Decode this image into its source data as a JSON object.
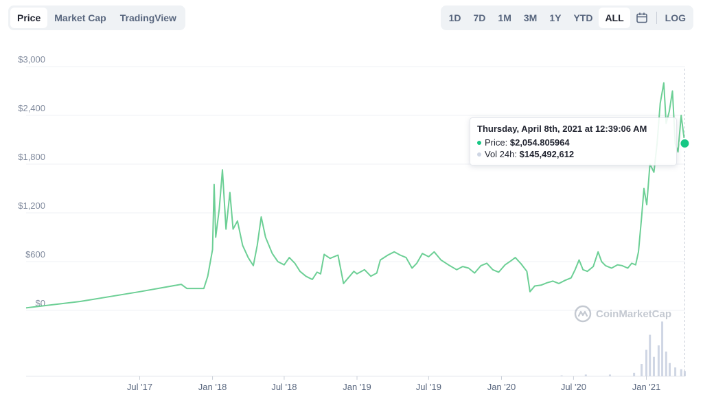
{
  "view_tabs": [
    {
      "label": "Price",
      "active": true
    },
    {
      "label": "Market Cap",
      "active": false
    },
    {
      "label": "TradingView",
      "active": false
    }
  ],
  "ranges": [
    {
      "label": "1D",
      "active": false
    },
    {
      "label": "7D",
      "active": false
    },
    {
      "label": "1M",
      "active": false
    },
    {
      "label": "3M",
      "active": false
    },
    {
      "label": "1Y",
      "active": false
    },
    {
      "label": "YTD",
      "active": false
    },
    {
      "label": "ALL",
      "active": true
    }
  ],
  "log_label": "LOG",
  "icons": {
    "calendar": "calendar-icon",
    "watermark": "coinmarketcap-logo-icon"
  },
  "tooltip": {
    "date": "Thursday, April 8th, 2021 at 12:39:06 AM",
    "price_label": "Price:",
    "price_value": "$2,054.805964",
    "vol_label": "Vol 24h:",
    "vol_value": "$145,492,612"
  },
  "watermark": "CoinMarketCap",
  "colors": {
    "line": "#16c784",
    "line_fill": "#6ccf95",
    "grid": "#eff2f5",
    "volume": "#cfd6e4",
    "axis_text": "#808a9d"
  },
  "chart_data": {
    "type": "line",
    "title": "",
    "ylabel": "",
    "xlabel": "",
    "y_ticks": [
      0,
      600,
      1200,
      1800,
      2400,
      3000
    ],
    "y_tick_labels": [
      "$0",
      "$600",
      "$1,200",
      "$1,800",
      "$2,400",
      "$3,000"
    ],
    "ylim": [
      0,
      3000
    ],
    "x_tick_labels": [
      "Jul '17",
      "Jan '18",
      "Jul '18",
      "Jan '19",
      "Jul '19",
      "Jan '20",
      "Jul '20",
      "Jan '21"
    ],
    "x_ticks": [
      "2017-07-01",
      "2018-01-01",
      "2018-07-01",
      "2019-01-01",
      "2019-07-01",
      "2020-01-01",
      "2020-07-01",
      "2021-01-01"
    ],
    "xlim": [
      "2016-09-17",
      "2021-04-09"
    ],
    "grid": true,
    "series": [
      {
        "values": [
          [
            "2016-09-17",
            30
          ],
          [
            "2017-02-01",
            110
          ],
          [
            "2017-07-01",
            230
          ],
          [
            "2017-10-14",
            320
          ],
          [
            "2017-10-28",
            270
          ],
          [
            "2017-12-10",
            270
          ],
          [
            "2017-12-20",
            420
          ],
          [
            "2018-01-01",
            750
          ],
          [
            "2018-01-05",
            1550
          ],
          [
            "2018-01-09",
            900
          ],
          [
            "2018-01-18",
            1250
          ],
          [
            "2018-01-26",
            1730
          ],
          [
            "2018-02-04",
            1000
          ],
          [
            "2018-02-14",
            1450
          ],
          [
            "2018-02-22",
            1000
          ],
          [
            "2018-03-05",
            1100
          ],
          [
            "2018-03-18",
            800
          ],
          [
            "2018-04-01",
            650
          ],
          [
            "2018-04-14",
            550
          ],
          [
            "2018-04-24",
            800
          ],
          [
            "2018-05-04",
            1150
          ],
          [
            "2018-05-15",
            900
          ],
          [
            "2018-06-01",
            700
          ],
          [
            "2018-06-15",
            600
          ],
          [
            "2018-07-01",
            560
          ],
          [
            "2018-07-14",
            650
          ],
          [
            "2018-07-28",
            580
          ],
          [
            "2018-08-10",
            480
          ],
          [
            "2018-08-25",
            420
          ],
          [
            "2018-09-10",
            380
          ],
          [
            "2018-09-22",
            470
          ],
          [
            "2018-10-01",
            450
          ],
          [
            "2018-10-10",
            690
          ],
          [
            "2018-10-25",
            640
          ],
          [
            "2018-11-14",
            680
          ],
          [
            "2018-11-28",
            330
          ],
          [
            "2018-12-10",
            400
          ],
          [
            "2018-12-24",
            480
          ],
          [
            "2019-01-01",
            450
          ],
          [
            "2019-01-20",
            500
          ],
          [
            "2019-02-05",
            420
          ],
          [
            "2019-02-20",
            460
          ],
          [
            "2019-03-01",
            620
          ],
          [
            "2019-03-20",
            680
          ],
          [
            "2019-04-05",
            720
          ],
          [
            "2019-04-20",
            680
          ],
          [
            "2019-05-05",
            650
          ],
          [
            "2019-05-20",
            520
          ],
          [
            "2019-06-01",
            580
          ],
          [
            "2019-06-15",
            700
          ],
          [
            "2019-07-01",
            660
          ],
          [
            "2019-07-15",
            720
          ],
          [
            "2019-08-01",
            620
          ],
          [
            "2019-08-20",
            560
          ],
          [
            "2019-09-10",
            500
          ],
          [
            "2019-09-25",
            540
          ],
          [
            "2019-10-10",
            520
          ],
          [
            "2019-10-25",
            460
          ],
          [
            "2019-11-10",
            550
          ],
          [
            "2019-11-25",
            580
          ],
          [
            "2019-12-10",
            500
          ],
          [
            "2019-12-25",
            470
          ],
          [
            "2020-01-10",
            560
          ],
          [
            "2020-01-25",
            610
          ],
          [
            "2020-02-05",
            650
          ],
          [
            "2020-02-20",
            570
          ],
          [
            "2020-03-05",
            480
          ],
          [
            "2020-03-13",
            230
          ],
          [
            "2020-03-25",
            300
          ],
          [
            "2020-04-10",
            310
          ],
          [
            "2020-04-25",
            340
          ],
          [
            "2020-05-10",
            360
          ],
          [
            "2020-05-25",
            330
          ],
          [
            "2020-06-10",
            370
          ],
          [
            "2020-06-25",
            400
          ],
          [
            "2020-07-05",
            500
          ],
          [
            "2020-07-15",
            620
          ],
          [
            "2020-07-25",
            500
          ],
          [
            "2020-08-05",
            480
          ],
          [
            "2020-08-20",
            540
          ],
          [
            "2020-09-01",
            720
          ],
          [
            "2020-09-10",
            600
          ],
          [
            "2020-09-20",
            550
          ],
          [
            "2020-10-05",
            520
          ],
          [
            "2020-10-20",
            560
          ],
          [
            "2020-11-01",
            550
          ],
          [
            "2020-11-15",
            520
          ],
          [
            "2020-11-25",
            580
          ],
          [
            "2020-12-05",
            560
          ],
          [
            "2020-12-12",
            720
          ],
          [
            "2020-12-20",
            1150
          ],
          [
            "2020-12-26",
            1500
          ],
          [
            "2021-01-02",
            1300
          ],
          [
            "2021-01-10",
            1800
          ],
          [
            "2021-01-20",
            1700
          ],
          [
            "2021-01-28",
            2050
          ],
          [
            "2021-02-05",
            2550
          ],
          [
            "2021-02-14",
            2800
          ],
          [
            "2021-02-20",
            2300
          ],
          [
            "2021-02-28",
            2450
          ],
          [
            "2021-03-08",
            2700
          ],
          [
            "2021-03-15",
            2050
          ],
          [
            "2021-03-22",
            1950
          ],
          [
            "2021-03-30",
            2400
          ],
          [
            "2021-04-08",
            2054.81
          ]
        ]
      }
    ],
    "volume": {
      "name": "Vol 24h",
      "values": [
        [
          "2020-06-01",
          1
        ],
        [
          "2020-08-01",
          2
        ],
        [
          "2020-10-01",
          2
        ],
        [
          "2020-12-01",
          4
        ],
        [
          "2020-12-20",
          14
        ],
        [
          "2021-01-01",
          30
        ],
        [
          "2021-01-10",
          47
        ],
        [
          "2021-01-20",
          22
        ],
        [
          "2021-02-01",
          35
        ],
        [
          "2021-02-10",
          62
        ],
        [
          "2021-02-20",
          28
        ],
        [
          "2021-03-01",
          15
        ],
        [
          "2021-03-15",
          10
        ],
        [
          "2021-03-30",
          8
        ],
        [
          "2021-04-08",
          6
        ]
      ]
    },
    "hover_date": "2021-04-08",
    "hover_value": 2054.81
  }
}
